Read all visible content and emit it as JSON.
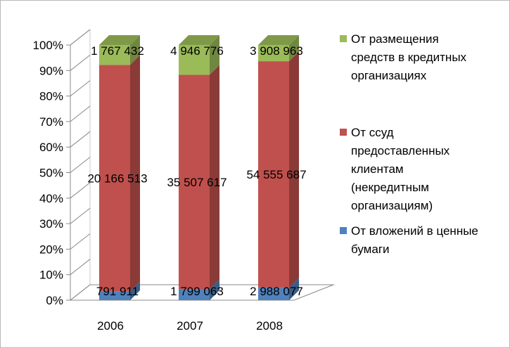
{
  "chart_data": {
    "type": "bar",
    "stacking": "percent",
    "view": "3d",
    "categories": [
      "2006",
      "2007",
      "2008"
    ],
    "y_ticks": [
      "0%",
      "10%",
      "20%",
      "30%",
      "40%",
      "50%",
      "60%",
      "70%",
      "80%",
      "90%",
      "100%"
    ],
    "ylim": [
      0,
      100
    ],
    "series": [
      {
        "name": "От вложений в ценные бумаги",
        "values": [
          791911,
          1799063,
          2988077
        ],
        "labels": [
          "791 911",
          "1 799 063",
          "2 988 077"
        ],
        "color": "#4F81BD"
      },
      {
        "name": "От ссуд предоставленных клиентам (некредитным организациям)",
        "values": [
          20166513,
          35507617,
          54555687
        ],
        "labels": [
          "20 166 513",
          "35 507 617",
          "54 555 687"
        ],
        "color": "#C0504D"
      },
      {
        "name": "От размещения средств в кредитных организациях",
        "values": [
          1767432,
          4946776,
          3908963
        ],
        "labels": [
          "1 767 432",
          "4 946 776",
          "3 908 963"
        ],
        "color": "#9BBB59"
      }
    ],
    "legend_order": [
      2,
      1,
      0
    ],
    "legend_position": "right",
    "legend": [
      {
        "lines": [
          "От размещения",
          "средств в кредитных",
          "организациях"
        ],
        "color": "#9BBB59"
      },
      {
        "lines": [
          "От ссуд",
          "предоставленных",
          "клиентам",
          "(некредитным",
          "организациям)"
        ],
        "color": "#C0504D"
      },
      {
        "lines": [
          "От вложений в ценные",
          "бумаги"
        ],
        "color": "#4F81BD"
      }
    ]
  }
}
